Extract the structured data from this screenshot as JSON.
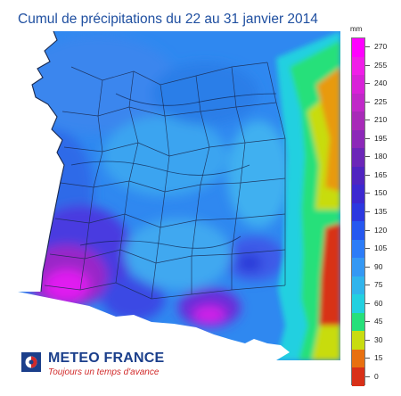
{
  "title": "Cumul de précipitations du 22 au 31 janvier 2014",
  "legend": {
    "unit": "mm",
    "ticks": [
      "270",
      "255",
      "240",
      "225",
      "210",
      "195",
      "180",
      "165",
      "150",
      "135",
      "120",
      "105",
      "90",
      "75",
      "60",
      "45",
      "30",
      "15",
      "0"
    ],
    "classes": [
      {
        "from": 255,
        "to": 270,
        "color": "#ff00ff"
      },
      {
        "from": 240,
        "to": 255,
        "color": "#f01ee8"
      },
      {
        "from": 225,
        "to": 240,
        "color": "#d822d8"
      },
      {
        "from": 210,
        "to": 225,
        "color": "#c028c8"
      },
      {
        "from": 195,
        "to": 210,
        "color": "#a82ab8"
      },
      {
        "from": 180,
        "to": 195,
        "color": "#8c28b8"
      },
      {
        "from": 165,
        "to": 180,
        "color": "#6c26b8"
      },
      {
        "from": 150,
        "to": 165,
        "color": "#5024c0"
      },
      {
        "from": 135,
        "to": 150,
        "color": "#3c28d0"
      },
      {
        "from": 120,
        "to": 135,
        "color": "#2c38e0"
      },
      {
        "from": 105,
        "to": 120,
        "color": "#2658f0"
      },
      {
        "from": 90,
        "to": 105,
        "color": "#2c7cf8"
      },
      {
        "from": 75,
        "to": 90,
        "color": "#3498f4"
      },
      {
        "from": 60,
        "to": 75,
        "color": "#30b4ec"
      },
      {
        "from": 45,
        "to": 60,
        "color": "#22d0e0"
      },
      {
        "from": 30,
        "to": 45,
        "color": "#26e07a"
      },
      {
        "from": 15,
        "to": 30,
        "color": "#c8dc10"
      },
      {
        "from": 0,
        "to": 15,
        "color": "#e87010"
      },
      {
        "from": -1,
        "to": 0,
        "color": "#d83018"
      }
    ]
  },
  "logo": {
    "name": "METEO FRANCE",
    "tagline": "Toujours un temps d'avance"
  }
}
